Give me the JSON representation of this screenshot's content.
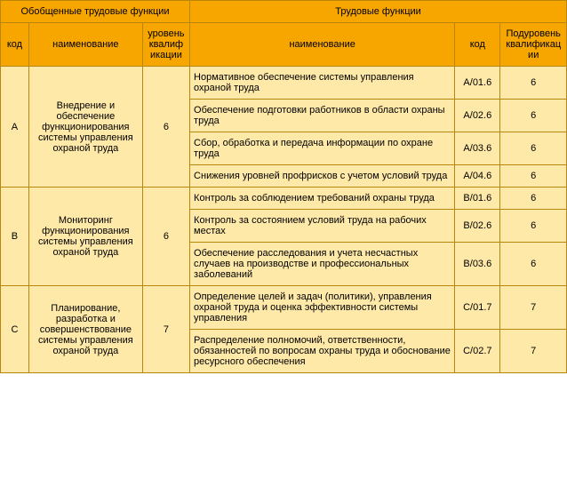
{
  "headers": {
    "group1": "Обобщенные трудовые функции",
    "group2": "Трудовые функции",
    "code": "код",
    "name": "наименование",
    "level": "уровень квалификации",
    "name2": "наименование",
    "code2": "код",
    "sublevel": "Подуровень квалификации"
  },
  "groups": [
    {
      "code": "A",
      "name": "Внедрение и обеспечение функционирования системы управления охраной труда",
      "level": "6",
      "rows": [
        {
          "name": "Нормативное обеспечение системы управления охраной труда",
          "code": "A/01.6",
          "sublevel": "6"
        },
        {
          "name": "Обеспечение подготовки работников в области охраны труда",
          "code": "A/02.6",
          "sublevel": "6"
        },
        {
          "name": "Сбор, обработка и передача информации по охране труда",
          "code": "A/03.6",
          "sublevel": "6"
        },
        {
          "name": "Снижения уровней профрисков с учетом условий труда",
          "code": "A/04.6",
          "sublevel": "6"
        }
      ]
    },
    {
      "code": "B",
      "name": "Мониторинг функционирования системы управления охраной труда",
      "level": "6",
      "rows": [
        {
          "name": "Контроль за соблюдением требований охраны труда",
          "code": "B/01.6",
          "sublevel": "6"
        },
        {
          "name": "Контроль за состоянием условий труда на рабочих местах",
          "code": "B/02.6",
          "sublevel": "6"
        },
        {
          "name": "Обеспечение расследования и учета несчастных случаев на производстве и профессиональных заболеваний",
          "code": "B/03.6",
          "sublevel": "6"
        }
      ]
    },
    {
      "code": "C",
      "name": "Планирование, разработка и совершенствование системы управления охраной труда",
      "level": "7",
      "rows": [
        {
          "name": "Определение целей и задач (политики), управления охраной труда и оценка эффективности системы управления",
          "code": "C/01.7",
          "sublevel": "7"
        },
        {
          "name": "Распределение полномочий, ответственности, обязанностей по вопросам охраны труда и обоснование ресурсного обеспечения",
          "code": "C/02.7",
          "sublevel": "7"
        }
      ]
    }
  ]
}
